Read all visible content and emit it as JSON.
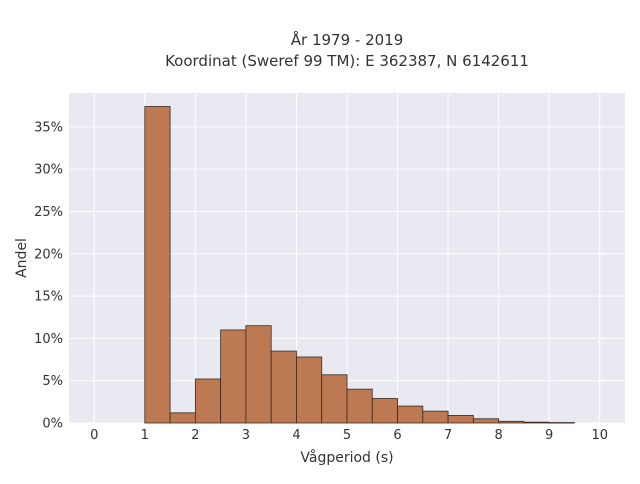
{
  "chart_data": {
    "type": "bar",
    "title_line1": "År 1979 - 2019",
    "title_line2": "Koordinat (Sweref 99 TM): E 362387, N 6142611",
    "xlabel": "Vågperiod (s)",
    "ylabel": "Andel",
    "xlim": [
      -0.5,
      10.5
    ],
    "ylim": [
      0,
      39
    ],
    "x_ticks": [
      0,
      1,
      2,
      3,
      4,
      5,
      6,
      7,
      8,
      9,
      10
    ],
    "y_ticks": [
      0,
      5,
      10,
      15,
      20,
      25,
      30,
      35
    ],
    "y_tick_suffix": "%",
    "bin_width": 0.5,
    "bins": [
      {
        "x0": 1.0,
        "value": 37.4
      },
      {
        "x0": 1.5,
        "value": 1.2
      },
      {
        "x0": 2.0,
        "value": 5.2
      },
      {
        "x0": 2.5,
        "value": 11.0
      },
      {
        "x0": 3.0,
        "value": 11.5
      },
      {
        "x0": 3.5,
        "value": 8.5
      },
      {
        "x0": 4.0,
        "value": 7.8
      },
      {
        "x0": 4.5,
        "value": 5.7
      },
      {
        "x0": 5.0,
        "value": 4.0
      },
      {
        "x0": 5.5,
        "value": 2.9
      },
      {
        "x0": 6.0,
        "value": 2.0
      },
      {
        "x0": 6.5,
        "value": 1.4
      },
      {
        "x0": 7.0,
        "value": 0.9
      },
      {
        "x0": 7.5,
        "value": 0.5
      },
      {
        "x0": 8.0,
        "value": 0.2
      },
      {
        "x0": 8.5,
        "value": 0.1
      },
      {
        "x0": 9.0,
        "value": 0.05
      }
    ],
    "grid": true,
    "colors": {
      "bar_fill": "#bd7a52",
      "bar_edge": "#3a2a20",
      "plot_bg": "#e9e9f1",
      "grid": "#ffffff"
    }
  }
}
